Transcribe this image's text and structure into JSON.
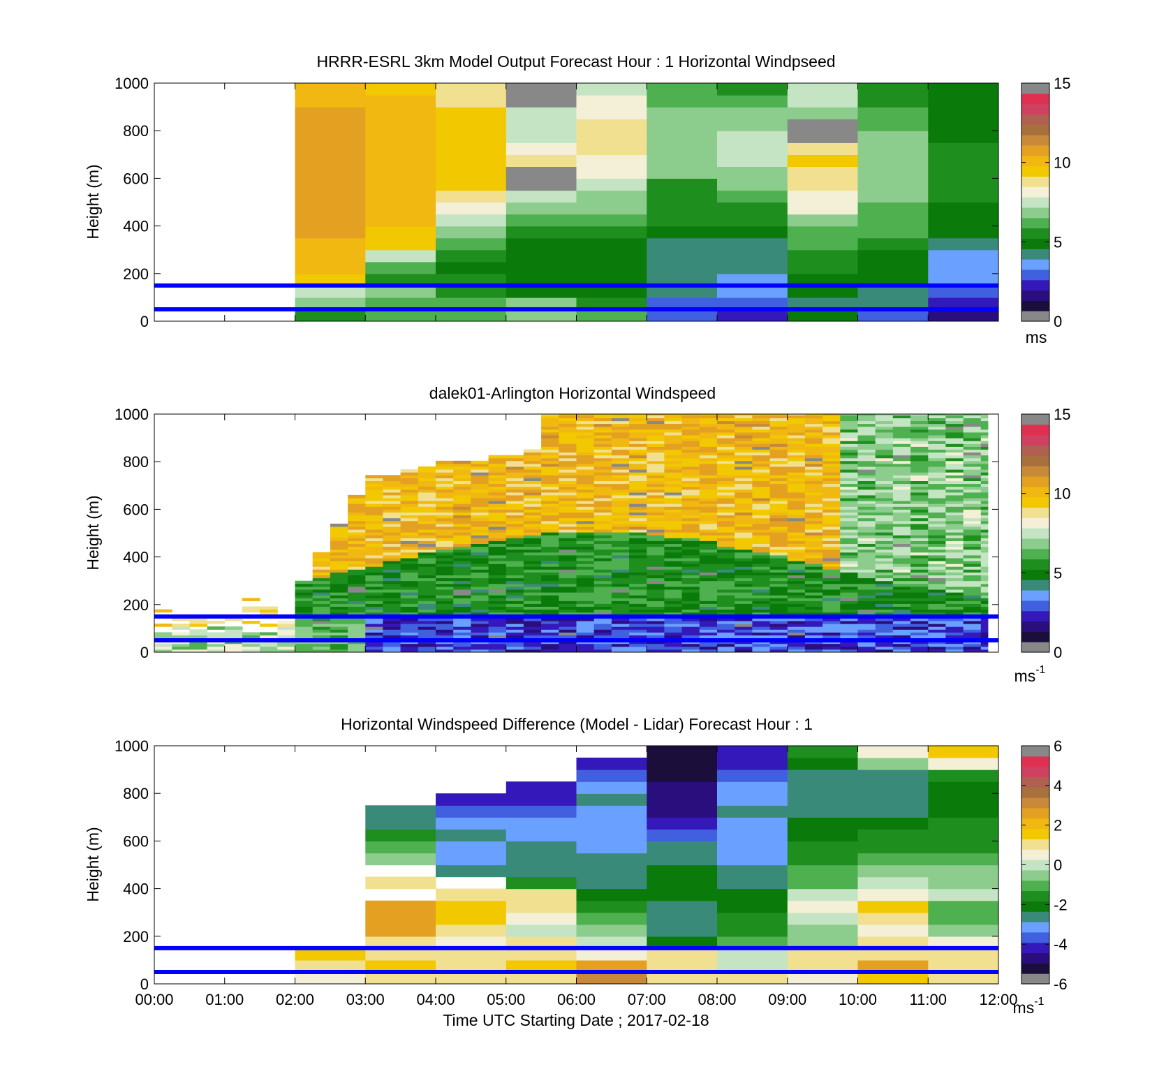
{
  "colors": {
    "ref_lines": "#0000ff",
    "speed_scale": [
      "#888888",
      "#1c0e3a",
      "#2a0e7e",
      "#3518b9",
      "#4060e0",
      "#6aa0ff",
      "#3a8a7a",
      "#0a7a0a",
      "#1e8e1e",
      "#4eb04e",
      "#8ccc8c",
      "#c4e4c4",
      "#f4f0d8",
      "#f0e090",
      "#f2c800",
      "#f0b810",
      "#e4a020",
      "#c88a38",
      "#a8703c",
      "#b06050",
      "#d04060",
      "#e03050",
      "#888888"
    ],
    "diff_scale": [
      "#888888",
      "#1c0e3a",
      "#2a0e7e",
      "#3518b9",
      "#4060e0",
      "#6aa0ff",
      "#3a8a7a",
      "#0a7a0a",
      "#1e8e1e",
      "#4eb04e",
      "#8ccc8c",
      "#c4e4c4",
      "#f4f0d8",
      "#f0e090",
      "#f2c800",
      "#f0b810",
      "#e4a020",
      "#c88a38",
      "#a8703c",
      "#b06050",
      "#d04060",
      "#e03050",
      "#888888"
    ]
  },
  "panels": [
    {
      "title": "HRRR-ESRL 3km Model Output   Forecast Hour : 1 Horizontal Windpseed",
      "ylabel": "Height (m)",
      "yticks": [
        "0",
        "200",
        "400",
        "600",
        "800",
        "1000"
      ],
      "cbar_ticks": [
        "0",
        "5",
        "10",
        "15"
      ],
      "cbar_unit": "ms",
      "cbar_unit_sup": ""
    },
    {
      "title": "dalek01-Arlington  Horizontal Windspeed",
      "ylabel": "Height (m)",
      "yticks": [
        "0",
        "200",
        "400",
        "600",
        "800",
        "1000"
      ],
      "cbar_ticks": [
        "0",
        "5",
        "10",
        "15"
      ],
      "cbar_unit": "ms",
      "cbar_unit_sup": "-1"
    },
    {
      "title": "Horizontal Windspeed Difference (Model - Lidar) Forecast Hour : 1",
      "ylabel": "Height (m)",
      "yticks": [
        "0",
        "200",
        "400",
        "600",
        "800",
        "1000"
      ],
      "cbar_ticks": [
        "-6",
        "-4",
        "-2",
        "0",
        "2",
        "4",
        "6"
      ],
      "cbar_unit": "ms",
      "cbar_unit_sup": "-1"
    }
  ],
  "xticks": [
    "00:00",
    "01:00",
    "02:00",
    "03:00",
    "04:00",
    "05:00",
    "06:00",
    "07:00",
    "08:00",
    "09:00",
    "10:00",
    "11:00",
    "12:00"
  ],
  "xlabel": "Time UTC  Starting Date ; 2017-02-18",
  "chart_data": [
    {
      "type": "heatmap",
      "title": "HRRR-ESRL 3km Model Output   Forecast Hour : 1 Horizontal Windpseed",
      "ylabel": "Height (m)",
      "x_range": [
        "00:00",
        "12:00"
      ],
      "ylim": [
        0,
        1000
      ],
      "clim": [
        0,
        15
      ],
      "colorbar_label": "ms",
      "reference_lines_m": [
        50,
        150
      ],
      "time_start_hours": [
        2,
        3,
        4,
        5,
        6,
        7,
        8,
        9,
        10,
        11
      ],
      "heights_m": [
        25,
        75,
        125,
        175,
        225,
        275,
        325,
        375,
        425,
        475,
        525,
        575,
        625,
        675,
        725,
        775,
        825,
        875,
        925,
        975
      ],
      "values": [
        [
          5.0,
          6.5,
          7.8,
          9.5,
          10.2,
          10.4,
          10.6,
          10.8,
          11.0,
          11.0,
          11.2,
          11.2,
          11.2,
          11.2,
          11.2,
          11.0,
          11.0,
          10.8,
          10.6,
          10.6
        ],
        [
          6.0,
          6.2,
          6.5,
          5.6,
          6.0,
          7.8,
          9.6,
          9.8,
          10.0,
          10.2,
          10.2,
          10.2,
          10.4,
          10.4,
          10.6,
          10.6,
          10.4,
          10.2,
          10.0,
          9.8
        ],
        [
          6.0,
          5.8,
          5.5,
          5.0,
          4.9,
          5.2,
          5.8,
          6.6,
          7.5,
          8.4,
          9.0,
          9.4,
          9.6,
          9.8,
          9.8,
          9.8,
          9.6,
          9.4,
          9.0,
          8.8
        ],
        [
          6.5,
          6.5,
          4.8,
          4.9,
          4.6,
          4.6,
          4.7,
          5.1,
          6.0,
          7.0,
          7.6,
          0.6,
          0.6,
          8.6,
          8.4,
          7.8,
          7.7,
          7.6,
          0.6,
          0.6
        ],
        [
          6.3,
          5.6,
          4.6,
          4.7,
          4.6,
          4.6,
          4.7,
          5.3,
          5.8,
          6.6,
          7.0,
          7.4,
          8.0,
          8.4,
          8.6,
          8.8,
          8.6,
          8.4,
          8.0,
          7.8
        ],
        [
          2.6,
          2.6,
          3.6,
          3.8,
          3.9,
          3.6,
          3.8,
          4.6,
          5.0,
          5.2,
          5.4,
          5.6,
          6.5,
          6.6,
          6.6,
          6.6,
          6.6,
          6.5,
          5.8,
          5.8
        ],
        [
          1.6,
          2.4,
          3.1,
          3.2,
          3.6,
          3.8,
          3.9,
          4.7,
          5.1,
          5.6,
          6.4,
          6.6,
          6.7,
          7.6,
          7.8,
          7.4,
          7.0,
          6.6,
          6.0,
          5.6
        ],
        [
          4.6,
          3.8,
          4.5,
          4.9,
          5.0,
          5.3,
          5.8,
          6.2,
          7.0,
          7.9,
          8.4,
          8.6,
          9.0,
          9.6,
          8.8,
          0.6,
          0.6,
          7.0,
          7.2,
          7.2
        ],
        [
          2.8,
          3.6,
          4.2,
          4.6,
          4.6,
          4.7,
          5.2,
          5.8,
          6.0,
          6.3,
          6.6,
          6.8,
          7.0,
          7.0,
          7.0,
          6.6,
          6.0,
          5.8,
          5.6,
          5.6
        ],
        [
          1.4,
          2.0,
          2.6,
          3.0,
          3.2,
          3.5,
          4.0,
          4.6,
          4.8,
          4.9,
          5.0,
          5.1,
          5.2,
          5.2,
          5.0,
          4.9,
          4.8,
          4.7,
          4.7,
          4.7
        ]
      ]
    },
    {
      "type": "heatmap",
      "title": "dalek01-Arlington  Horizontal Windspeed",
      "ylabel": "Height (m)",
      "x_range": [
        "00:00",
        "12:00"
      ],
      "ylim": [
        0,
        1000
      ],
      "clim": [
        0,
        15
      ],
      "colorbar_label": "ms-1",
      "reference_lines_m": [
        50,
        150
      ]
    },
    {
      "type": "heatmap",
      "title": "Horizontal Windspeed Difference (Model - Lidar) Forecast Hour : 1",
      "ylabel": "Height (m)",
      "xlabel": "Time UTC  Starting Date ; 2017-02-18",
      "x_range": [
        "00:00",
        "12:00"
      ],
      "ylim": [
        0,
        1000
      ],
      "clim": [
        -6,
        6
      ],
      "colorbar_label": "ms-1",
      "reference_lines_m": [
        50,
        150
      ],
      "time_start_hours": [
        2,
        3,
        4,
        5,
        6,
        7,
        8,
        9,
        10,
        11
      ],
      "heights_m": [
        25,
        75,
        125,
        175,
        225,
        275,
        325,
        375,
        425,
        475,
        525,
        575,
        625,
        675,
        725,
        775,
        825,
        875,
        925,
        975
      ],
      "values": [
        [
          0.5,
          1.4,
          1.8,
          null,
          null,
          null,
          null,
          null,
          null,
          null,
          null,
          null,
          null,
          null,
          null,
          null,
          null,
          null,
          null,
          null
        ],
        [
          1.2,
          1.6,
          1.2,
          1.4,
          2.6,
          3.0,
          2.6,
          null,
          1.4,
          null,
          -0.8,
          -1.2,
          -1.6,
          -2.6,
          -3.0,
          null,
          null,
          null,
          null,
          null
        ],
        [
          1.0,
          1.4,
          1.0,
          0.8,
          1.2,
          1.8,
          1.6,
          1.4,
          null,
          -3.0,
          -3.2,
          -3.2,
          -3.0,
          -3.4,
          -4.0,
          -4.6,
          null,
          null,
          null,
          null
        ],
        [
          0.9,
          1.8,
          1.4,
          1.4,
          0.2,
          0.4,
          1.0,
          1.2,
          -2.0,
          -2.6,
          -2.8,
          -3.0,
          -3.4,
          -3.6,
          -3.8,
          -4.4,
          -4.6,
          null,
          null,
          null
        ],
        [
          3.6,
          2.6,
          0.6,
          -0.2,
          -0.6,
          -1.0,
          -1.6,
          -2.4,
          -2.6,
          -2.8,
          -3.0,
          -3.2,
          -3.4,
          -3.2,
          -3.2,
          -3.0,
          -3.6,
          -4.2,
          -4.6,
          null
        ],
        [
          1.2,
          1.0,
          1.4,
          -2.4,
          -2.8,
          -3.0,
          -2.6,
          -2.4,
          -2.2,
          -2.4,
          -2.8,
          -3.0,
          -3.8,
          -4.4,
          -5.0,
          -5.2,
          -5.4,
          -5.6,
          -5.6,
          -5.8
        ],
        [
          1.0,
          0.2,
          -0.2,
          -1.2,
          -1.6,
          -2.0,
          -2.2,
          -2.4,
          -2.8,
          -3.0,
          -3.2,
          -3.4,
          -3.2,
          -3.2,
          -3.0,
          -3.2,
          -3.6,
          -4.2,
          -4.4,
          -4.6
        ],
        [
          0.6,
          1.4,
          1.0,
          -0.6,
          -0.8,
          -0.2,
          0.4,
          -0.2,
          -1.0,
          -1.4,
          -1.8,
          -2.0,
          -2.2,
          -2.4,
          -2.6,
          -2.8,
          -3.0,
          -2.8,
          -2.4,
          -2.0
        ],
        [
          1.6,
          2.6,
          1.4,
          1.0,
          0.6,
          1.4,
          1.6,
          0.8,
          -0.2,
          -0.4,
          -1.0,
          -1.6,
          -2.0,
          -2.4,
          -2.6,
          -2.8,
          -2.8,
          -2.6,
          -0.6,
          0.8
        ],
        [
          1.4,
          1.2,
          1.0,
          0.8,
          -0.6,
          -1.0,
          -1.2,
          0.2,
          -0.4,
          -0.8,
          -1.2,
          -1.6,
          -1.8,
          -2.0,
          -2.2,
          -2.4,
          -2.4,
          -2.0,
          0.8,
          1.6
        ]
      ]
    }
  ]
}
